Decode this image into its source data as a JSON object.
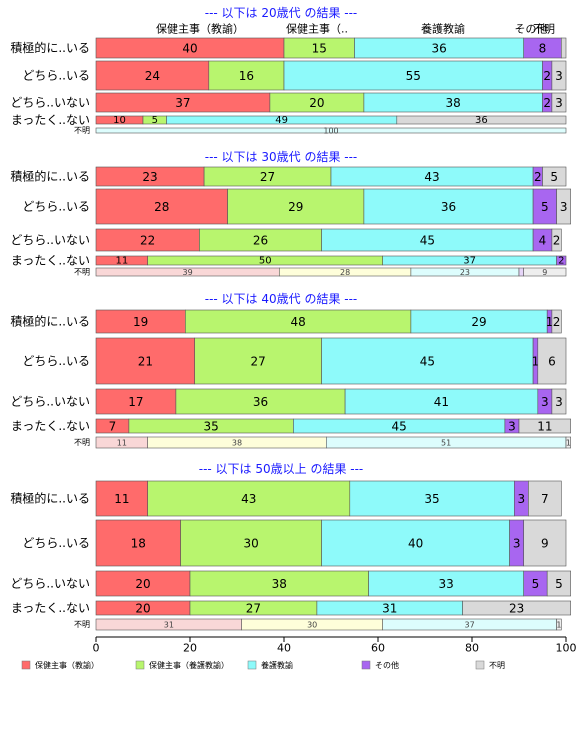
{
  "chart_data": {
    "type": "bar",
    "orientation": "horizontal",
    "stacked": true,
    "column_headers": [
      "保健主事（教諭）",
      "保健主事（..",
      "養護教諭",
      "その他",
      "不明"
    ],
    "series_colors": [
      "#FF6B6B",
      "#B8F56E",
      "#8EFAFA",
      "#A866F0",
      "#D9D9D9"
    ],
    "missing_row_colors": [
      "#F9D7D7",
      "#FEFEDA",
      "#DDFDFD",
      "#E6D5F8",
      "#EEEEEE"
    ],
    "xlim": [
      0,
      100
    ],
    "x_ticks": [
      "0",
      "20",
      "40",
      "60",
      "80",
      "100"
    ],
    "legend": {
      "position": "bottom",
      "entries": [
        "保健主事（教諭）",
        "保健主事（養護教諭）",
        "養護教諭",
        "その他",
        "不明"
      ]
    },
    "panels": [
      {
        "title": "--- 以下は 20歳代 の結果 ---",
        "rows": [
          {
            "label": "積極的に..いる",
            "values": [
              40,
              15,
              36,
              8,
              1
            ],
            "labels": [
              "40",
              "15",
              "36",
              "8",
              ""
            ]
          },
          {
            "label": "どちら..いる",
            "values": [
              24,
              16,
              55,
              2,
              3
            ],
            "labels": [
              "24",
              "16",
              "55",
              "2",
              "3"
            ]
          },
          {
            "label": "どちら..いない",
            "values": [
              37,
              20,
              38,
              2,
              3
            ],
            "labels": [
              "37",
              "20",
              "38",
              "2",
              "3"
            ]
          },
          {
            "label": "まったく..ない",
            "values": [
              10,
              5,
              49,
              0,
              36
            ],
            "labels": [
              "10",
              "5",
              "49",
              "",
              "36"
            ]
          },
          {
            "label": "不明",
            "values": [
              0,
              0,
              100,
              0,
              0
            ],
            "labels": [
              "",
              "",
              "100",
              "",
              ""
            ],
            "missing": true
          }
        ]
      },
      {
        "title": "--- 以下は 30歳代 の結果 ---",
        "rows": [
          {
            "label": "積極的に..いる",
            "values": [
              23,
              27,
              43,
              2,
              5
            ],
            "labels": [
              "23",
              "27",
              "43",
              "2",
              "5"
            ]
          },
          {
            "label": "どちら..いる",
            "values": [
              28,
              29,
              36,
              5,
              3
            ],
            "labels": [
              "28",
              "29",
              "36",
              "5",
              "3"
            ]
          },
          {
            "label": "どちら..いない",
            "values": [
              22,
              26,
              45,
              4,
              2
            ],
            "labels": [
              "22",
              "26",
              "45",
              "4",
              "2"
            ]
          },
          {
            "label": "まったく..ない",
            "values": [
              11,
              50,
              37,
              2,
              0
            ],
            "labels": [
              "11",
              "50",
              "37",
              "2",
              ""
            ]
          },
          {
            "label": "不明",
            "values": [
              39,
              28,
              23,
              1,
              9
            ],
            "labels": [
              "39",
              "28",
              "23",
              "",
              "9"
            ],
            "missing": true
          }
        ]
      },
      {
        "title": "--- 以下は 40歳代 の結果 ---",
        "rows": [
          {
            "label": "積極的に..いる",
            "values": [
              19,
              48,
              29,
              1,
              2
            ],
            "labels": [
              "19",
              "48",
              "29",
              "1",
              "2"
            ]
          },
          {
            "label": "どちら..いる",
            "values": [
              21,
              27,
              45,
              1,
              6
            ],
            "labels": [
              "21",
              "27",
              "45",
              "1",
              "6"
            ]
          },
          {
            "label": "どちら..いない",
            "values": [
              17,
              36,
              41,
              3,
              3
            ],
            "labels": [
              "17",
              "36",
              "41",
              "3",
              "3"
            ]
          },
          {
            "label": "まったく..ない",
            "values": [
              7,
              35,
              45,
              3,
              11
            ],
            "labels": [
              "7",
              "35",
              "45",
              "3",
              "11"
            ]
          },
          {
            "label": "不明",
            "values": [
              11,
              38,
              51,
              0,
              1
            ],
            "labels": [
              "11",
              "38",
              "51",
              "",
              "1"
            ],
            "missing": true
          }
        ]
      },
      {
        "title": "--- 以下は 50歳以上 の結果 ---",
        "rows": [
          {
            "label": "積極的に..いる",
            "values": [
              11,
              43,
              35,
              3,
              7
            ],
            "labels": [
              "11",
              "43",
              "35",
              "3",
              "7"
            ]
          },
          {
            "label": "どちら..いる",
            "values": [
              18,
              30,
              40,
              3,
              9
            ],
            "labels": [
              "18",
              "30",
              "40",
              "3",
              "9"
            ]
          },
          {
            "label": "どちら..いない",
            "values": [
              20,
              38,
              33,
              5,
              5
            ],
            "labels": [
              "20",
              "38",
              "33",
              "5",
              "5"
            ]
          },
          {
            "label": "まったく..ない",
            "values": [
              20,
              27,
              31,
              0,
              23
            ],
            "labels": [
              "20",
              "27",
              "31",
              "",
              "23"
            ]
          },
          {
            "label": "不明",
            "values": [
              31,
              30,
              37,
              0,
              1
            ],
            "labels": [
              "31",
              "30",
              "37",
              "",
              "1"
            ],
            "missing": true
          }
        ]
      }
    ]
  }
}
